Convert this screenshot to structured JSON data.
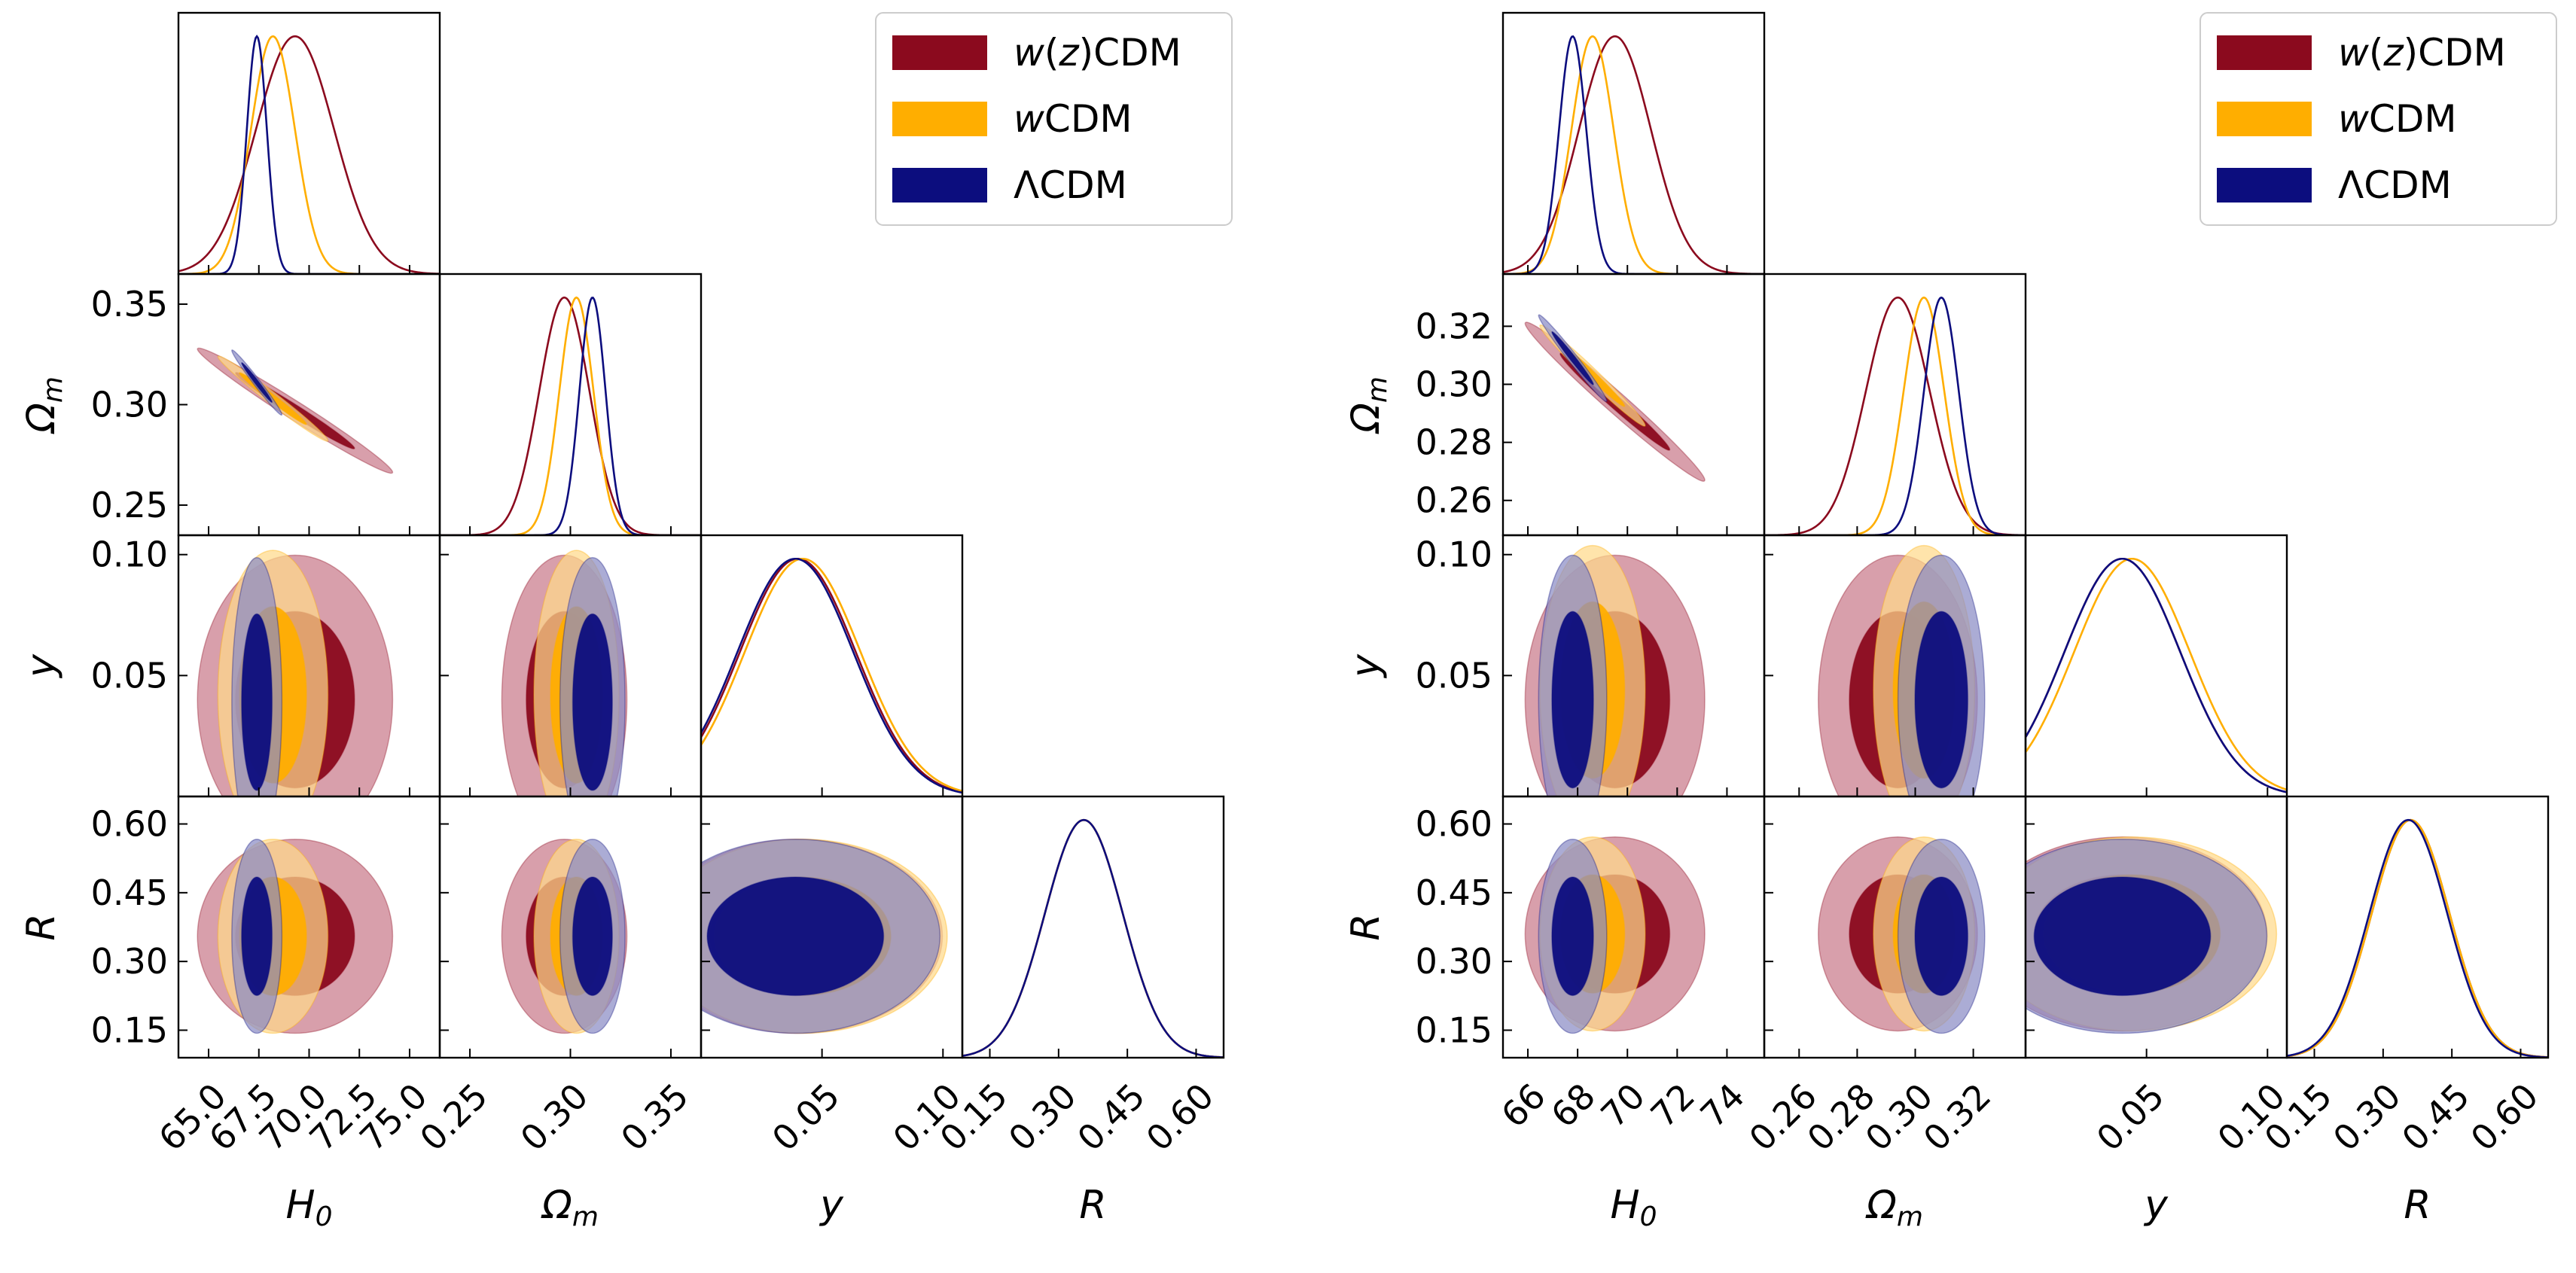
{
  "figure": {
    "description_title": ""
  },
  "colors": {
    "wzCDM": "#8b0a1e",
    "wCDM": "#ffae00",
    "LCDM": "#0c0d7e",
    "wzCDM_fill_outer": "#c97a8a",
    "wCDM_fill_outer": "#ffd98a",
    "LCDM_fill_outer": "#8b8cc5",
    "axes": "#000000"
  },
  "legend": {
    "placement": "top-right",
    "entries": [
      {
        "key": "wzCDM",
        "italic": "w",
        "rest1": "(",
        "italic2": "z",
        "rest2": ")CDM"
      },
      {
        "key": "wCDM",
        "italic": "w",
        "rest1": "CDM",
        "italic2": "",
        "rest2": ""
      },
      {
        "key": "LCDM",
        "italic": "",
        "rest1": "ΛCDM",
        "italic2": "",
        "rest2": ""
      }
    ]
  },
  "chart_data": [
    {
      "type": "corner",
      "params": [
        {
          "name": "H0",
          "label_main": "H",
          "label_sub": "0",
          "range": [
            63.5,
            76.5
          ],
          "ticks": [
            65.0,
            67.5,
            70.0,
            72.5,
            75.0
          ],
          "tick_labels": [
            "65.0",
            "67.5",
            "70.0",
            "72.5",
            "75.0"
          ]
        },
        {
          "name": "Om",
          "label_main": "Ω",
          "label_sub": "m",
          "range": [
            0.235,
            0.365
          ],
          "ticks": [
            0.25,
            0.3,
            0.35
          ],
          "tick_labels": [
            "0.25",
            "0.30",
            "0.35"
          ]
        },
        {
          "name": "y",
          "label_main": "y",
          "label_sub": "",
          "range": [
            0.0,
            0.108
          ],
          "ticks": [
            0.05,
            0.1
          ],
          "tick_labels": [
            "0.05",
            "0.10"
          ]
        },
        {
          "name": "R",
          "label_main": "R",
          "label_sub": "",
          "range": [
            0.09,
            0.66
          ],
          "ticks": [
            0.15,
            0.3,
            0.45,
            0.6
          ],
          "tick_labels": [
            "0.15",
            "0.30",
            "0.45",
            "0.60"
          ]
        }
      ],
      "series": [
        {
          "name": "w(z)CDM",
          "key": "wzCDM",
          "mean": {
            "H0": 69.3,
            "Om": 0.297,
            "y": 0.04,
            "R": 0.355
          },
          "sigma": {
            "H0": 1.95,
            "Om": 0.0125,
            "y": 0.024,
            "R": 0.085
          },
          "corr_H0_Om": -0.985
        },
        {
          "name": "wCDM",
          "key": "wCDM",
          "mean": {
            "H0": 68.2,
            "Om": 0.303,
            "y": 0.042,
            "R": 0.355
          },
          "sigma": {
            "H0": 1.1,
            "Om": 0.0085,
            "y": 0.024,
            "R": 0.085
          },
          "corr_H0_Om": -0.985
        },
        {
          "name": "ΛCDM",
          "key": "LCDM",
          "mean": {
            "H0": 67.4,
            "Om": 0.311,
            "y": 0.039,
            "R": 0.355
          },
          "sigma": {
            "H0": 0.5,
            "Om": 0.0065,
            "y": 0.024,
            "R": 0.085
          },
          "corr_H0_Om": -0.985
        }
      ]
    },
    {
      "type": "corner",
      "params": [
        {
          "name": "H0",
          "label_main": "H",
          "label_sub": "0",
          "range": [
            65.0,
            75.5
          ],
          "ticks": [
            66,
            68,
            70,
            72,
            74
          ],
          "tick_labels": [
            "66",
            "68",
            "70",
            "72",
            "74"
          ]
        },
        {
          "name": "Om",
          "label_main": "Ω",
          "label_sub": "m",
          "range": [
            0.248,
            0.338
          ],
          "ticks": [
            0.26,
            0.28,
            0.3,
            0.32
          ],
          "tick_labels": [
            "0.26",
            "0.28",
            "0.30",
            "0.32"
          ]
        },
        {
          "name": "y",
          "label_main": "y",
          "label_sub": "",
          "range": [
            0.0,
            0.108
          ],
          "ticks": [
            0.05,
            0.1
          ],
          "tick_labels": [
            "0.05",
            "0.10"
          ]
        },
        {
          "name": "R",
          "label_main": "R",
          "label_sub": "",
          "range": [
            0.09,
            0.66
          ],
          "ticks": [
            0.15,
            0.3,
            0.45,
            0.6
          ],
          "tick_labels": [
            "0.15",
            "0.30",
            "0.45",
            "0.60"
          ]
        }
      ],
      "series": [
        {
          "name": "w(z)CDM",
          "key": "wzCDM",
          "mean": {
            "H0": 69.5,
            "Om": 0.294,
            "y": 0.04,
            "R": 0.36
          },
          "sigma": {
            "H0": 1.45,
            "Om": 0.011,
            "y": 0.024,
            "R": 0.085
          },
          "corr_H0_Om": -0.985
        },
        {
          "name": "wCDM",
          "key": "wCDM",
          "mean": {
            "H0": 68.6,
            "Om": 0.303,
            "y": 0.044,
            "R": 0.36
          },
          "sigma": {
            "H0": 0.85,
            "Om": 0.007,
            "y": 0.024,
            "R": 0.085
          },
          "corr_H0_Om": -0.985
        },
        {
          "name": "ΛCDM",
          "key": "LCDM",
          "mean": {
            "H0": 67.8,
            "Om": 0.309,
            "y": 0.04,
            "R": 0.355
          },
          "sigma": {
            "H0": 0.55,
            "Om": 0.006,
            "y": 0.024,
            "R": 0.085
          },
          "corr_H0_Om": -0.985
        }
      ]
    }
  ]
}
